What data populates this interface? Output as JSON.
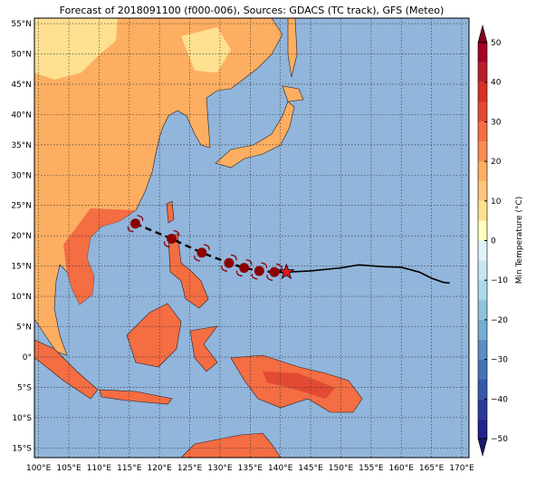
{
  "chart_data": {
    "type": "map",
    "title": "Forecast of 2018091100 (f000-006), Sources: GDACS (TC track), GFS (Meteo)",
    "xlim": [
      99.3,
      171.2
    ],
    "ylim": [
      -16.6,
      55.9
    ],
    "xticks": [
      {
        "value": 100,
        "label": "100°E"
      },
      {
        "value": 105,
        "label": "105°E"
      },
      {
        "value": 110,
        "label": "110°E"
      },
      {
        "value": 115,
        "label": "115°E"
      },
      {
        "value": 120,
        "label": "120°E"
      },
      {
        "value": 125,
        "label": "125°E"
      },
      {
        "value": 130,
        "label": "130°E"
      },
      {
        "value": 135,
        "label": "135°E"
      },
      {
        "value": 140,
        "label": "140°E"
      },
      {
        "value": 145,
        "label": "145°E"
      },
      {
        "value": 150,
        "label": "150°E"
      },
      {
        "value": 155,
        "label": "155°E"
      },
      {
        "value": 160,
        "label": "160°E"
      },
      {
        "value": 165,
        "label": "165°E"
      },
      {
        "value": 170,
        "label": "170°E"
      }
    ],
    "yticks": [
      {
        "value": 55,
        "label": "55°N"
      },
      {
        "value": 50,
        "label": "50°N"
      },
      {
        "value": 45,
        "label": "45°N"
      },
      {
        "value": 40,
        "label": "40°N"
      },
      {
        "value": 35,
        "label": "35°N"
      },
      {
        "value": 30,
        "label": "30°N"
      },
      {
        "value": 25,
        "label": "25°N"
      },
      {
        "value": 20,
        "label": "20°N"
      },
      {
        "value": 15,
        "label": "15°N"
      },
      {
        "value": 10,
        "label": "10°N"
      },
      {
        "value": 5,
        "label": "5°N"
      },
      {
        "value": 0,
        "label": "0°"
      },
      {
        "value": -5,
        "label": "5°S"
      },
      {
        "value": -10,
        "label": "10°S"
      },
      {
        "value": -15,
        "label": "15°S"
      }
    ],
    "track": {
      "forecast": {
        "lon": [
          116,
          122,
          127,
          131.5,
          134,
          136.5,
          139
        ],
        "lat": [
          22,
          19.5,
          17.2,
          15.5,
          14.7,
          14.2,
          14
        ]
      },
      "current": {
        "lon": 141,
        "lat": 14
      },
      "past": {
        "lon": [
          141,
          145,
          150,
          153,
          157,
          160,
          163,
          165,
          167,
          168
        ],
        "lat": [
          14,
          14.2,
          14.7,
          15.2,
          14.9,
          14.8,
          14,
          13,
          12.3,
          12.2
        ]
      }
    },
    "colorbar": {
      "label": "Min Temperature (°C)",
      "lim": [
        -50,
        50
      ],
      "ticks": [
        {
          "value": -50,
          "label": "−50"
        },
        {
          "value": -40,
          "label": "−40"
        },
        {
          "value": -30,
          "label": "−30"
        },
        {
          "value": -20,
          "label": "−20"
        },
        {
          "value": -10,
          "label": "−10"
        },
        0,
        10,
        20,
        30,
        40,
        50
      ],
      "colors": [
        "#23238e",
        "#2c3a9c",
        "#3558a8",
        "#4575b4",
        "#5b8ec2",
        "#74add1",
        "#8fc3dd",
        "#abd9e9",
        "#c7e6f0",
        "#e0f3f8",
        "#ffffbf",
        "#fee090",
        "#fec67a",
        "#fdae61",
        "#f88d52",
        "#f46d43",
        "#e34a33",
        "#d73027",
        "#b81f2b",
        "#a50026"
      ]
    }
  }
}
